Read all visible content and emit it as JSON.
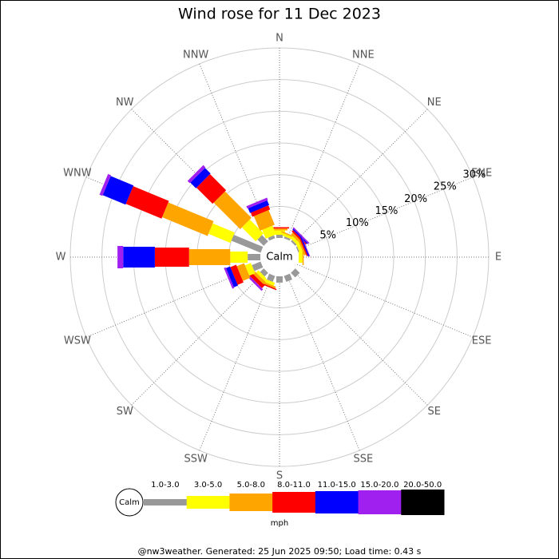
{
  "chart_data": {
    "type": "windrose",
    "title": "Wind rose for 11 Dec 2023",
    "calm_label": "Calm",
    "unit": "mph",
    "footer": "@nw3weather. Generated: 25 Jun 2025 09:50; Load time: 0.43 s",
    "categories": [
      "N",
      "NNE",
      "NE",
      "ENE",
      "E",
      "ESE",
      "SE",
      "SSE",
      "S",
      "SSW",
      "SW",
      "WSW",
      "W",
      "WNW",
      "NW",
      "NNW"
    ],
    "rlim": [
      0,
      30
    ],
    "rticks": [
      {
        "value": 5,
        "label": "5%"
      },
      {
        "value": 10,
        "label": "10%"
      },
      {
        "value": 15,
        "label": "15%"
      },
      {
        "value": 20,
        "label": "20%"
      },
      {
        "value": 25,
        "label": "25%"
      },
      {
        "value": 30,
        "label": "30%"
      }
    ],
    "series": [
      {
        "name": "1.0-3.0",
        "color": "#999999",
        "values": [
          0.5,
          0.3,
          0.3,
          0.2,
          0,
          0,
          1,
          1,
          1,
          1,
          0.8,
          1.5,
          2,
          5,
          1.4,
          0.5
        ]
      },
      {
        "name": "3.0-5.0",
        "color": "#ffff00",
        "values": [
          0.7,
          0.4,
          0.5,
          0.5,
          0.6,
          0,
          0,
          0,
          0,
          0.5,
          0.5,
          1,
          2.75,
          3.75,
          3.1,
          1.5
        ]
      },
      {
        "name": "5.0-8.0",
        "color": "#ffa500",
        "values": [
          0.3,
          0.2,
          0.4,
          0.3,
          0.2,
          0,
          0,
          0,
          0,
          0.3,
          0.5,
          1.25,
          6.5,
          7.75,
          5.9,
          2.5
        ]
      },
      {
        "name": "8.0-11.0",
        "color": "#ff0000",
        "values": [
          0.2,
          0,
          0.3,
          0.2,
          0,
          0,
          0,
          0,
          0,
          0.2,
          0.6,
          1,
          5.4,
          6.1,
          3.6,
          0.7
        ]
      },
      {
        "name": "11.0-15.0",
        "color": "#0000ff",
        "values": [
          0,
          0,
          0.2,
          0.2,
          0,
          0,
          0,
          0,
          0,
          0,
          0,
          0.7,
          5,
          3.9,
          1.25,
          0.8
        ]
      },
      {
        "name": "15.0-20.0",
        "color": "#a020f0",
        "values": [
          0,
          0,
          0.2,
          0.1,
          0,
          0,
          0,
          0,
          0,
          0,
          0.35,
          0.3,
          0.9,
          0.5,
          0.5,
          0.4
        ]
      },
      {
        "name": "20.0-50.0",
        "color": "#000000",
        "values": [
          0,
          0,
          0,
          0,
          0,
          0,
          0,
          0,
          0,
          0,
          0,
          0,
          0,
          0,
          0,
          0
        ]
      }
    ]
  }
}
